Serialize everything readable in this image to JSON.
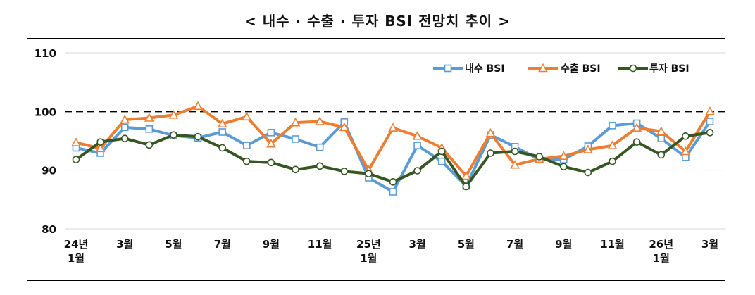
{
  "chart_data": {
    "type": "line",
    "title": "< 내수 · 수출 · 투자 BSI 전망치 추이 >",
    "x": [
      "24.1",
      "24.2",
      "24.3",
      "24.4",
      "24.5",
      "24.6",
      "24.7",
      "24.8",
      "24.9",
      "24.10",
      "24.11",
      "24.12",
      "25.1",
      "25.2",
      "25.3",
      "25.4",
      "25.5",
      "25.6",
      "25.7",
      "25.8",
      "25.9",
      "25.10",
      "25.11",
      "25.12",
      "26.1",
      "26.2",
      "26.3"
    ],
    "x_tick_labels": [
      {
        "index": 0,
        "lines": [
          "24년",
          "1월"
        ]
      },
      {
        "index": 2,
        "lines": [
          "3월"
        ]
      },
      {
        "index": 4,
        "lines": [
          "5월"
        ]
      },
      {
        "index": 6,
        "lines": [
          "7월"
        ]
      },
      {
        "index": 8,
        "lines": [
          "9월"
        ]
      },
      {
        "index": 10,
        "lines": [
          "11월"
        ]
      },
      {
        "index": 12,
        "lines": [
          "25년",
          "1월"
        ]
      },
      {
        "index": 14,
        "lines": [
          "3월"
        ]
      },
      {
        "index": 16,
        "lines": [
          "5월"
        ]
      },
      {
        "index": 18,
        "lines": [
          "7월"
        ]
      },
      {
        "index": 20,
        "lines": [
          "9월"
        ]
      },
      {
        "index": 22,
        "lines": [
          "11월"
        ]
      },
      {
        "index": 24,
        "lines": [
          "26년",
          "1월"
        ]
      },
      {
        "index": 26,
        "lines": [
          "3월"
        ]
      }
    ],
    "y_ticks": [
      80,
      90,
      100,
      110
    ],
    "ylim": [
      80,
      110
    ],
    "reference_line": 100,
    "grid": true,
    "legend_position": "top-right",
    "series": [
      {
        "name": "내수 BSI",
        "color": "#5b9bd5",
        "marker": "square",
        "values": [
          93.8,
          92.9,
          97.3,
          97.0,
          95.9,
          95.5,
          96.5,
          94.2,
          96.4,
          95.3,
          93.9,
          98.2,
          88.7,
          86.3,
          94.2,
          91.5,
          87.3,
          96.0,
          94.0,
          91.8,
          91.8,
          94.1,
          97.6,
          98.0,
          95.4,
          92.2,
          98.3
        ]
      },
      {
        "name": "수출 BSI",
        "color": "#ed7d31",
        "marker": "triangle",
        "values": [
          94.7,
          93.7,
          98.6,
          98.9,
          99.4,
          100.9,
          97.9,
          99.1,
          94.5,
          98.1,
          98.3,
          97.3,
          90.0,
          97.2,
          95.8,
          93.8,
          89.0,
          96.3,
          90.9,
          91.9,
          92.4,
          93.5,
          94.2,
          97.2,
          96.6,
          93.2,
          100.0
        ]
      },
      {
        "name": "투자 BSI",
        "color": "#375623",
        "marker": "circle",
        "values": [
          91.8,
          94.8,
          95.4,
          94.3,
          96.0,
          95.7,
          93.8,
          91.5,
          91.3,
          90.1,
          90.7,
          89.8,
          89.4,
          88.0,
          89.9,
          93.2,
          87.2,
          92.9,
          93.2,
          92.3,
          90.6,
          89.6,
          91.5,
          94.8,
          92.6,
          95.8,
          96.4
        ]
      }
    ]
  }
}
